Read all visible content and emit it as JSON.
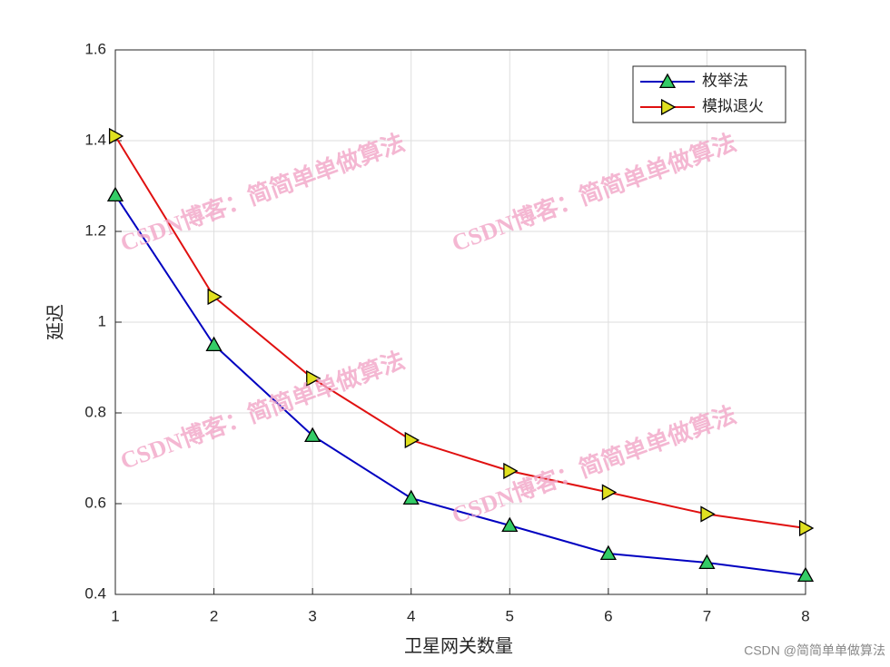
{
  "chart_data": {
    "type": "line",
    "x": [
      1,
      2,
      3,
      4,
      5,
      6,
      7,
      8
    ],
    "series": [
      {
        "name": "枚举法",
        "color": "#0000c0",
        "marker": "triangle-up",
        "marker_color": "#33cc66",
        "values": [
          1.28,
          0.95,
          0.75,
          0.612,
          0.552,
          0.49,
          0.47,
          0.442
        ]
      },
      {
        "name": "模拟退火",
        "color": "#e01010",
        "marker": "triangle-right",
        "marker_color": "#e0e020",
        "values": [
          1.41,
          1.056,
          0.876,
          0.74,
          0.672,
          0.625,
          0.577,
          0.546
        ]
      }
    ],
    "xlabel": "卫星网关数量",
    "ylabel": "延迟",
    "xlim": [
      1,
      8
    ],
    "xticks": [
      1,
      2,
      3,
      4,
      5,
      6,
      7,
      8
    ],
    "ylim": [
      0.4,
      1.6
    ],
    "yticks": [
      0.4,
      0.6,
      0.8,
      1,
      1.2,
      1.4,
      1.6
    ],
    "grid": true,
    "legend": "northeast"
  },
  "watermark": "CSDN博客：简简单单做算法",
  "credit": "CSDN @简简单单做算法"
}
